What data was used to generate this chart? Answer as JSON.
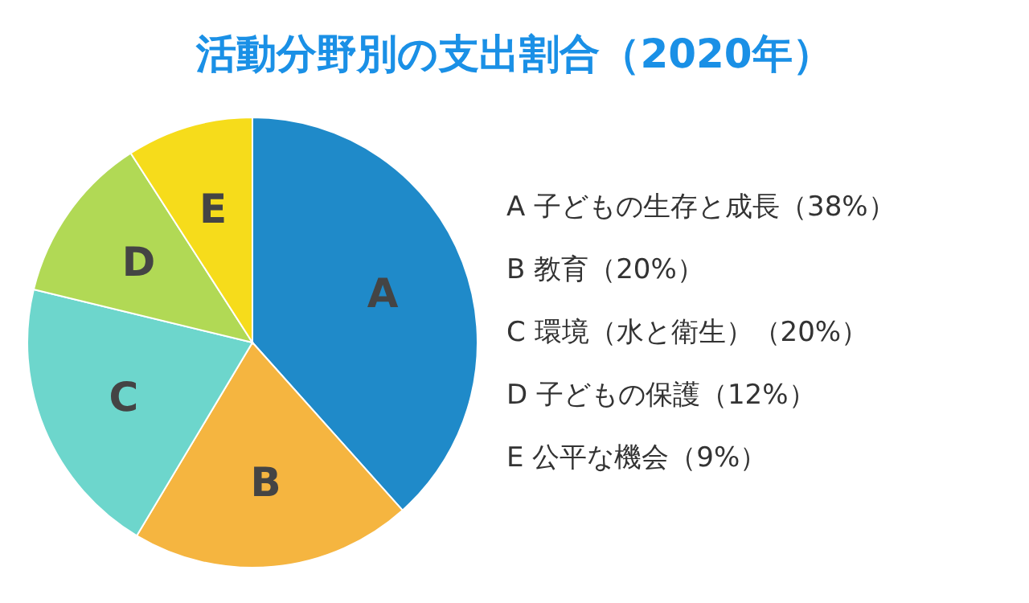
{
  "chart_data": {
    "type": "pie",
    "title": "活動分野別の支出割合（2020年）",
    "categories": [
      "A",
      "B",
      "C",
      "D",
      "E"
    ],
    "values": [
      38,
      20,
      20,
      12,
      9
    ],
    "colors": [
      "#1f8ac9",
      "#f5b540",
      "#6dd6cc",
      "#b1d955",
      "#f6dc1b"
    ],
    "annotations": [
      "A 子どもの生存と成長（38%）",
      "B 教育（20%）",
      "C 環境（水と衛生）（20%）",
      "D 子どもの保護（12%）",
      "E 公平な機会（9%）"
    ]
  }
}
